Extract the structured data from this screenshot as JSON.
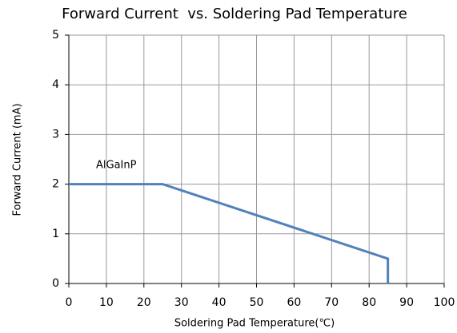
{
  "chart_data": {
    "type": "line",
    "title": "Forward Current  vs. Soldering Pad Temperature",
    "xlabel": "Soldering Pad Temperature(℃)",
    "ylabel": "Forward Current (mA)",
    "annotation": "AlGaInP",
    "x": [
      0,
      25,
      85,
      85
    ],
    "series": [
      {
        "name": "AlGaInP",
        "color": "#4f81bd",
        "values": [
          2,
          2,
          0.5,
          0
        ]
      }
    ],
    "xlim": [
      0,
      100
    ],
    "xticks": [
      0,
      10,
      20,
      30,
      40,
      50,
      60,
      70,
      80,
      90,
      100
    ],
    "ylim": [
      0,
      5
    ],
    "yticks": [
      0,
      1,
      2,
      3,
      4,
      5
    ],
    "grid": true
  }
}
